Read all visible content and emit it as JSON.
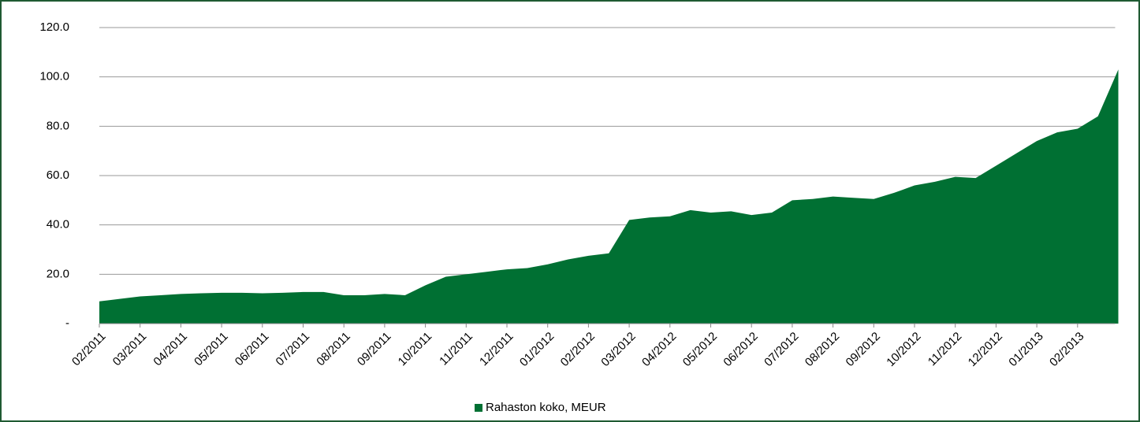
{
  "chart_data": {
    "type": "area",
    "categories": [
      "02/2011",
      null,
      "03/2011",
      null,
      "04/2011",
      null,
      "05/2011",
      null,
      "06/2011",
      null,
      "07/2011",
      null,
      "08/2011",
      null,
      "09/2011",
      null,
      "10/2011",
      null,
      "11/2011",
      null,
      "12/2011",
      null,
      "01/2012",
      null,
      "02/2012",
      null,
      "03/2012",
      null,
      "04/2012",
      null,
      "05/2012",
      null,
      "06/2012",
      null,
      "07/2012",
      null,
      "08/2012",
      null,
      "09/2012",
      null,
      "10/2012",
      null,
      "11/2012",
      null,
      "12/2012",
      null,
      "01/2013",
      null,
      "02/2013",
      null,
      null
    ],
    "values": [
      9,
      10,
      11,
      11.5,
      12,
      12.3,
      12.5,
      12.5,
      12.3,
      12.5,
      12.8,
      12.8,
      11.5,
      11.5,
      12,
      11.5,
      15.5,
      19,
      20,
      21,
      22,
      22.5,
      24,
      26,
      27.5,
      28.5,
      42,
      43,
      43.5,
      46,
      45,
      45.5,
      44,
      45,
      50,
      50.5,
      51.5,
      51,
      50.5,
      53,
      56,
      57.5,
      59.5,
      59,
      64,
      69,
      74,
      77.5,
      79,
      84,
      103
    ],
    "color": "#007033",
    "legend": "Rahaston koko, MEUR",
    "ylim": [
      0,
      120
    ],
    "yticks": [
      {
        "value": 0,
        "label": "-"
      },
      {
        "value": 20,
        "label": "20.0"
      },
      {
        "value": 40,
        "label": "40.0"
      },
      {
        "value": 60,
        "label": "60.0"
      },
      {
        "value": 80,
        "label": "80.0"
      },
      {
        "value": 100,
        "label": "100.0"
      },
      {
        "value": 120,
        "label": "120.0"
      }
    ],
    "grid": true
  }
}
